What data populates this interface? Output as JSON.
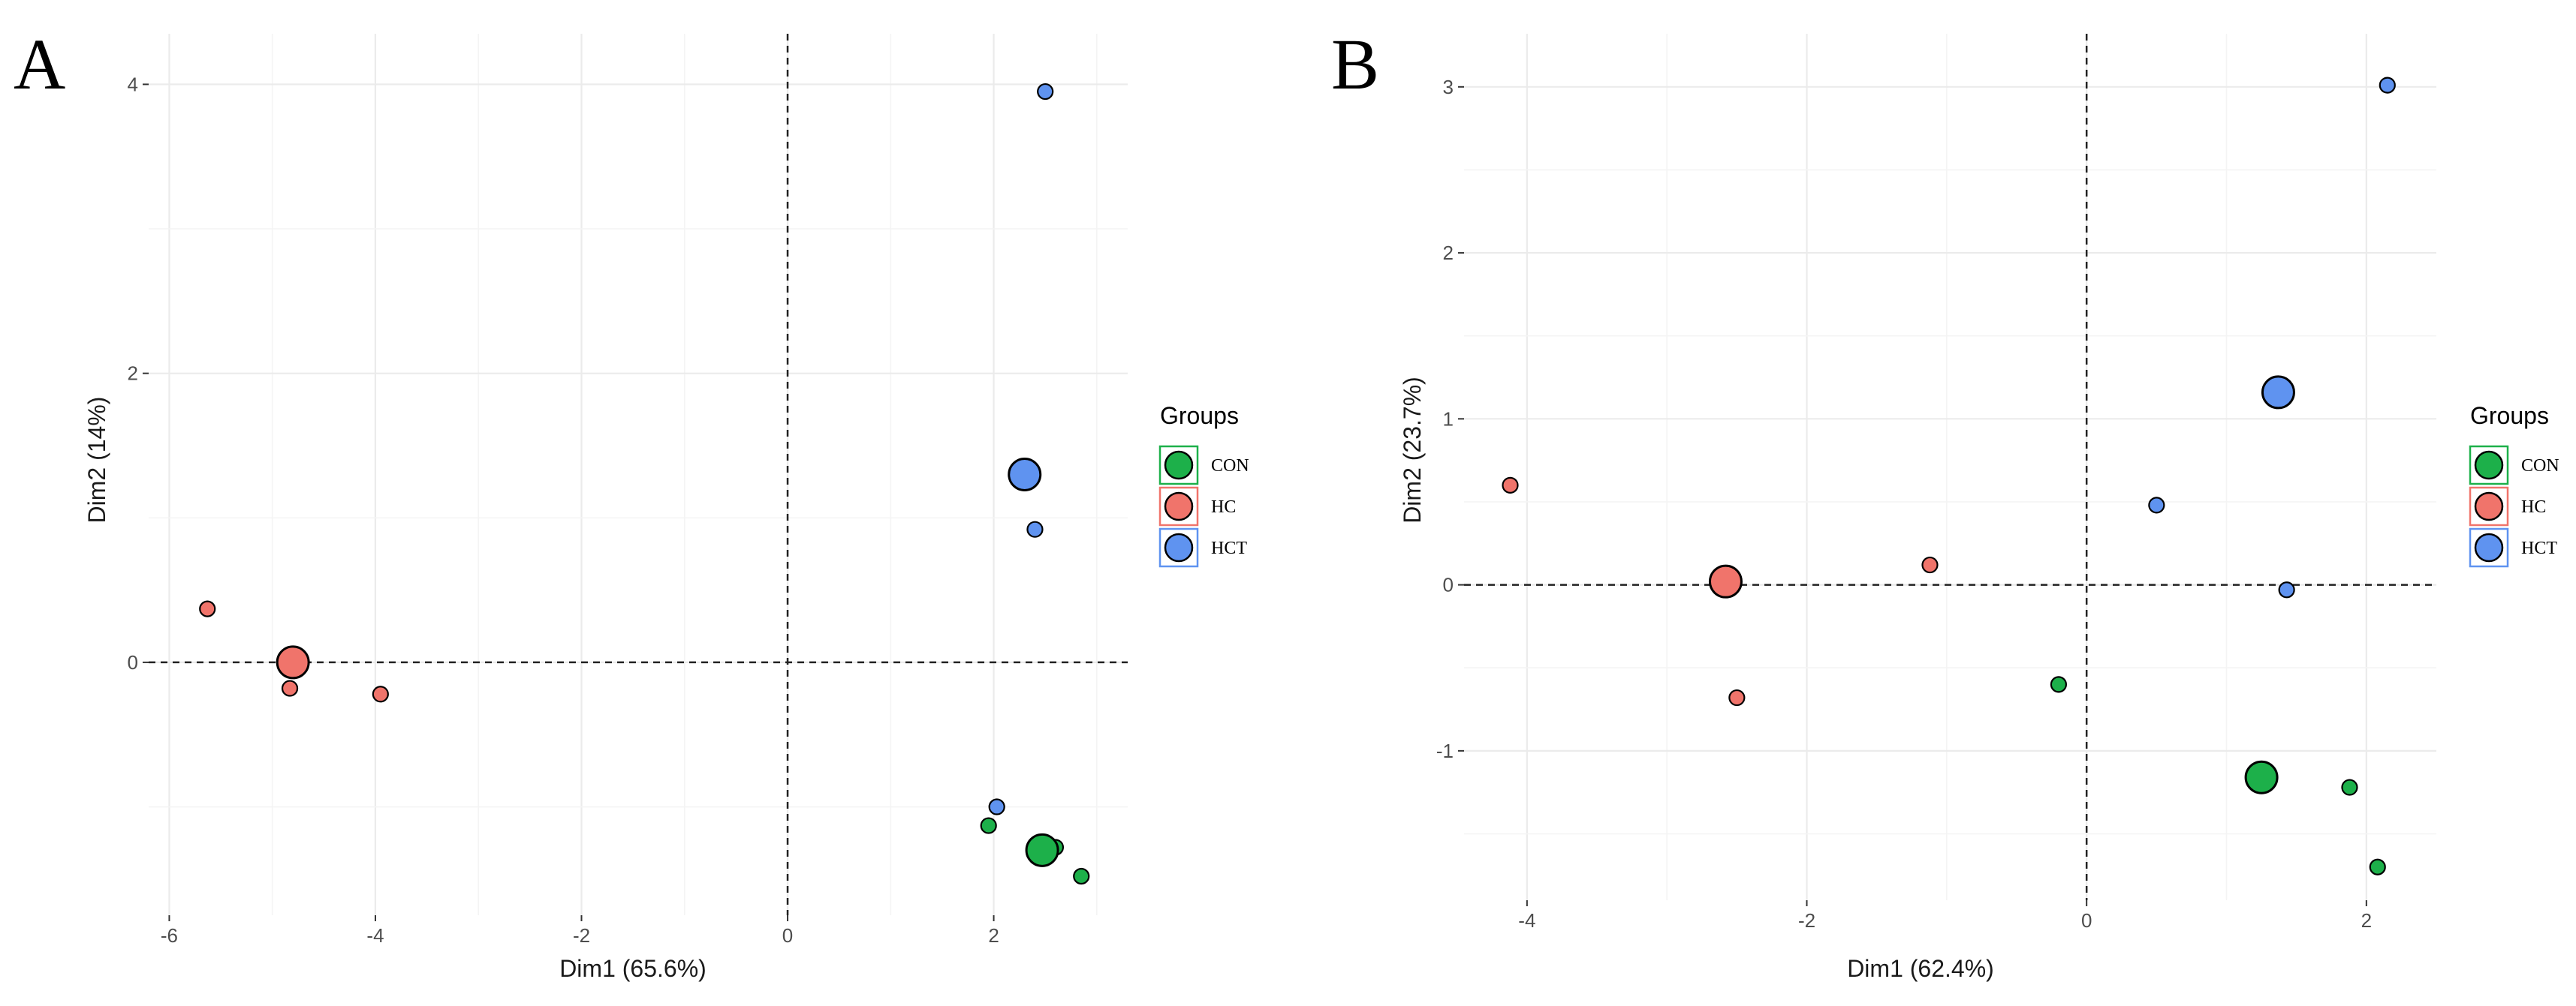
{
  "chart_data": [
    {
      "type": "scatter",
      "panel": "A",
      "xlabel": "Dim1 (65.6%)",
      "ylabel": "Dim2 (14%)",
      "xlim": [
        -6.2,
        3.3
      ],
      "ylim": [
        -1.75,
        4.35
      ],
      "xticks": [
        -6,
        -4,
        -2,
        0,
        2
      ],
      "yticks": [
        0,
        2,
        4
      ],
      "xtick_labels": [
        "-6",
        "-4",
        "-2",
        "0",
        "2"
      ],
      "ytick_labels": [
        "0",
        "2",
        "4"
      ],
      "grid": true,
      "reference_lines": {
        "x": 0,
        "y": 0
      },
      "legend": {
        "title": "Groups",
        "position": "right",
        "entries": [
          "CON",
          "HC",
          "HCT"
        ]
      },
      "series": [
        {
          "name": "CON",
          "color": "#1db04a",
          "points": [
            {
              "x": 1.95,
              "y": -1.13,
              "size": "small"
            },
            {
              "x": 2.6,
              "y": -1.28,
              "size": "small"
            },
            {
              "x": 2.85,
              "y": -1.48,
              "size": "small"
            }
          ],
          "centroid": {
            "x": 2.47,
            "y": -1.3
          }
        },
        {
          "name": "HC",
          "color": "#f0746b",
          "points": [
            {
              "x": -5.63,
              "y": 0.37,
              "size": "small"
            },
            {
              "x": -4.83,
              "y": -0.18,
              "size": "small"
            },
            {
              "x": -3.95,
              "y": -0.22,
              "size": "small"
            }
          ],
          "centroid": {
            "x": -4.8,
            "y": 0.0
          }
        },
        {
          "name": "HCT",
          "color": "#5f93f0",
          "points": [
            {
              "x": 2.5,
              "y": 3.95,
              "size": "small"
            },
            {
              "x": 2.4,
              "y": 0.92,
              "size": "small"
            },
            {
              "x": 2.03,
              "y": -1.0,
              "size": "small"
            }
          ],
          "centroid": {
            "x": 2.3,
            "y": 1.3
          }
        }
      ]
    },
    {
      "type": "scatter",
      "panel": "B",
      "xlabel": "Dim1 (62.4%)",
      "ylabel": "Dim2 (23.7%)",
      "xlim": [
        -4.45,
        2.5
      ],
      "ylim": [
        -1.9,
        3.32
      ],
      "xticks": [
        -4,
        -2,
        0,
        2
      ],
      "yticks": [
        -1,
        0,
        1,
        2,
        3
      ],
      "xtick_labels": [
        "-4",
        "-2",
        "0",
        "2"
      ],
      "ytick_labels": [
        "-1",
        "0",
        "1",
        "2",
        "3"
      ],
      "grid": true,
      "reference_lines": {
        "x": 0,
        "y": 0
      },
      "legend": {
        "title": "Groups",
        "position": "right",
        "entries": [
          "CON",
          "HC",
          "HCT"
        ]
      },
      "series": [
        {
          "name": "CON",
          "color": "#1db04a",
          "points": [
            {
              "x": -0.2,
              "y": -0.6,
              "size": "small"
            },
            {
              "x": 1.88,
              "y": -1.22,
              "size": "small"
            },
            {
              "x": 2.08,
              "y": -1.7,
              "size": "small"
            }
          ],
          "centroid": {
            "x": 1.25,
            "y": -1.16
          }
        },
        {
          "name": "HC",
          "color": "#f0746b",
          "points": [
            {
              "x": -4.12,
              "y": 0.6,
              "size": "small"
            },
            {
              "x": -1.12,
              "y": 0.12,
              "size": "small"
            },
            {
              "x": -2.5,
              "y": -0.68,
              "size": "small"
            }
          ],
          "centroid": {
            "x": -2.58,
            "y": 0.02
          }
        },
        {
          "name": "HCT",
          "color": "#5f93f0",
          "points": [
            {
              "x": 2.15,
              "y": 3.01,
              "size": "small"
            },
            {
              "x": 0.5,
              "y": 0.48,
              "size": "small"
            },
            {
              "x": 1.43,
              "y": -0.03,
              "size": "small"
            }
          ],
          "centroid": {
            "x": 1.37,
            "y": 1.16
          }
        }
      ]
    }
  ]
}
